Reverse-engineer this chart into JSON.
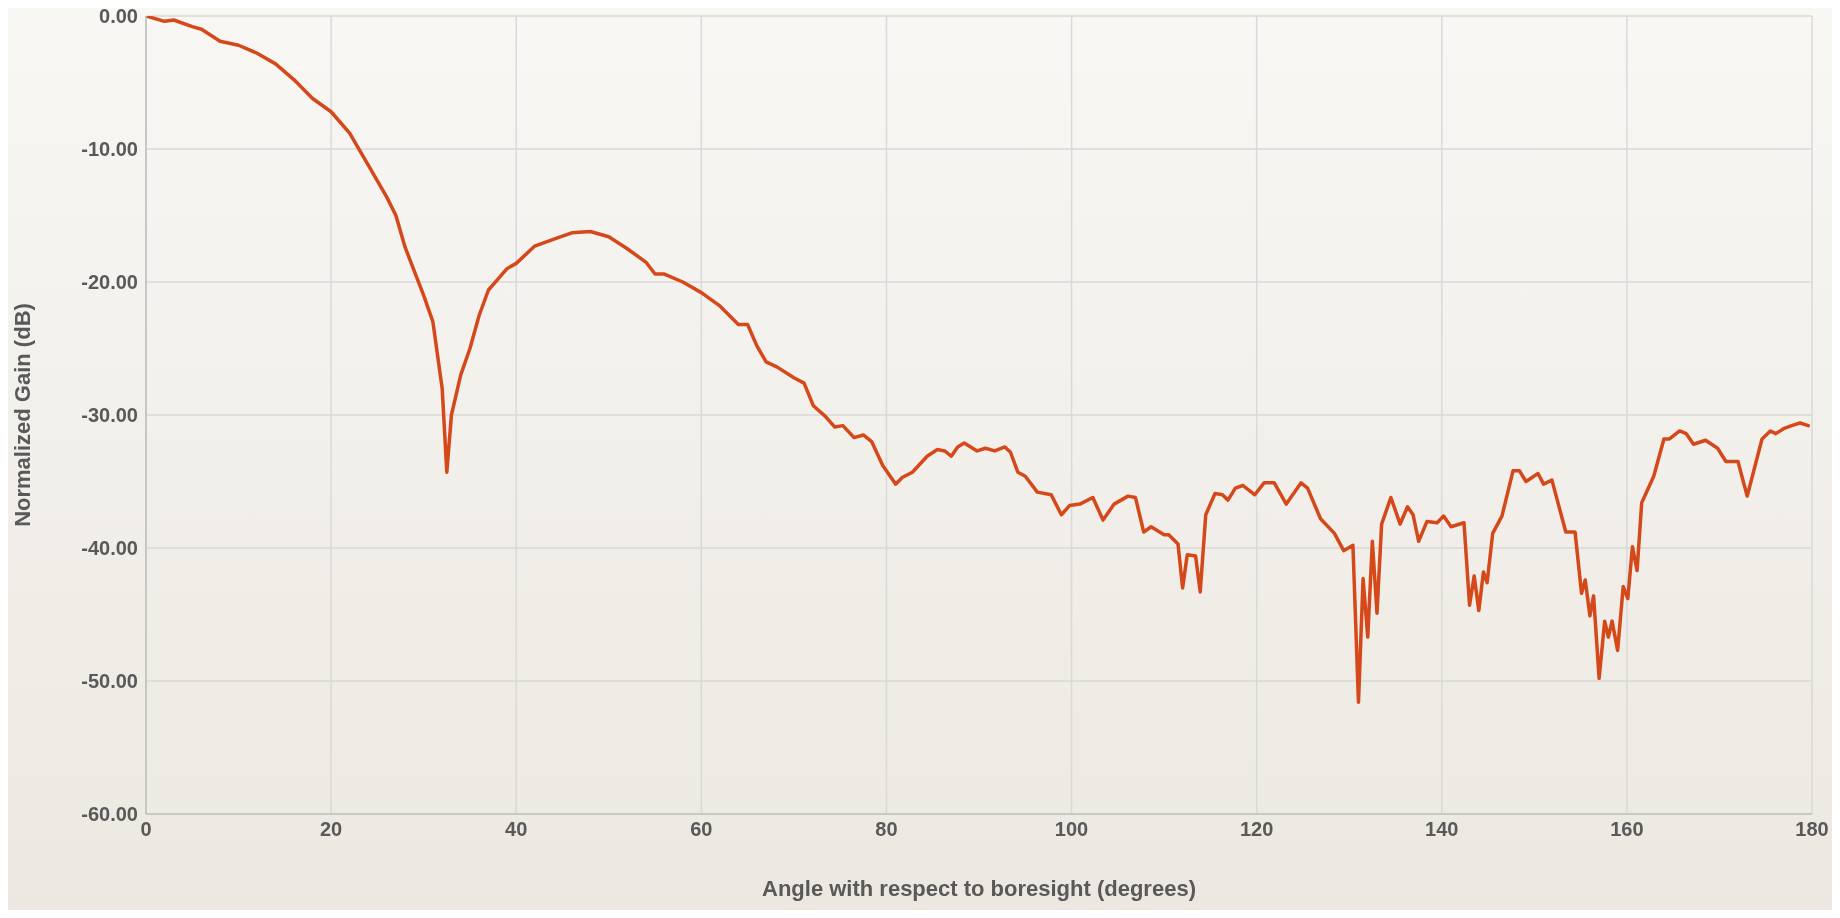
{
  "chart_data": {
    "type": "line",
    "xlabel": "Angle with respect to boresight (degrees)",
    "ylabel": "Normalized Gain (dB)",
    "xlim": [
      0,
      180
    ],
    "xticks": [
      0,
      20,
      40,
      60,
      80,
      100,
      120,
      140,
      160,
      180
    ],
    "ylim": [
      -60,
      0
    ],
    "yticks": [
      {
        "value": -60,
        "label": "-60.00"
      },
      {
        "value": -50,
        "label": "-50.00"
      },
      {
        "value": -40,
        "label": "-40.00"
      },
      {
        "value": -30,
        "label": "-30.00"
      },
      {
        "value": -20,
        "label": "-20.00"
      },
      {
        "value": -10,
        "label": "-10.00"
      },
      {
        "value": 0,
        "label": "0.00"
      }
    ],
    "grid": true,
    "marker": "none",
    "line_style": "solid",
    "series": [
      {
        "color": "#d4481a",
        "x": [
          0,
          2,
          3,
          5,
          6,
          8,
          10,
          12,
          14,
          16,
          18,
          20,
          22,
          24,
          26,
          27,
          28,
          30,
          31,
          32,
          32.5,
          33,
          34,
          35,
          36,
          37,
          38,
          39,
          40,
          42,
          44,
          46,
          48,
          50,
          52,
          54,
          55,
          56,
          58,
          60,
          62,
          64,
          65,
          66,
          67,
          68.2,
          70,
          71.1,
          72.1,
          73.4,
          74.4,
          75.3,
          76.5,
          77.5,
          78.4,
          79.6,
          81,
          81.7,
          82.8,
          84.4,
          85.5,
          86.3,
          87,
          87.7,
          88.4,
          89.8,
          90.7,
          91.7,
          92.8,
          93.4,
          94.2,
          95,
          96.3,
          97.8,
          98.9,
          99.8,
          100.9,
          102.3,
          103.4,
          104.6,
          106.1,
          106.9,
          107.8,
          108.6,
          110,
          110.5,
          111.5,
          112,
          112.5,
          113.4,
          113.9,
          114.5,
          115.5,
          116.3,
          116.9,
          117.7,
          118.5,
          119.8,
          120.8,
          121.9,
          123.2,
          124.8,
          125.5,
          126.9,
          128.4,
          129.4,
          130.4,
          131,
          131.5,
          132,
          132.5,
          133,
          133.5,
          134.5,
          135.5,
          136.3,
          136.9,
          137.5,
          138.4,
          139.5,
          140.2,
          141,
          142.4,
          143,
          143.5,
          144,
          144.5,
          144.9,
          145.5,
          146.5,
          147.7,
          148.4,
          149.1,
          150.4,
          151,
          151.9,
          153.4,
          154.4,
          155.1,
          155.5,
          156,
          156.4,
          157,
          157.6,
          158,
          158.4,
          159,
          159.6,
          160.1,
          160.6,
          161.1,
          161.6,
          162.9,
          164,
          164.6,
          165.7,
          166.4,
          167.2,
          168.5,
          169.8,
          170.7,
          172,
          173,
          174.6,
          175.5,
          176.1,
          177,
          177.8,
          178.7,
          179.6
        ],
        "values": [
          0,
          -0.4,
          -0.3,
          -0.8,
          -1.0,
          -1.9,
          -2.2,
          -2.8,
          -3.6,
          -4.8,
          -6.2,
          -7.2,
          -8.8,
          -11.2,
          -13.6,
          -15,
          -17.4,
          -21,
          -23,
          -28,
          -34.3,
          -30,
          -27,
          -25,
          -22.5,
          -20.6,
          -19.8,
          -19,
          -18.6,
          -17.3,
          -16.8,
          -16.3,
          -16.2,
          -16.6,
          -17.5,
          -18.5,
          -19.4,
          -19.4,
          -20,
          -20.8,
          -21.8,
          -23.2,
          -23.2,
          -24.8,
          -26,
          -26.4,
          -27.2,
          -27.6,
          -29.3,
          -30.1,
          -30.9,
          -30.8,
          -31.7,
          -31.5,
          -32.0,
          -33.8,
          -35.2,
          -34.7,
          -34.3,
          -33.1,
          -32.6,
          -32.7,
          -33.1,
          -32.4,
          -32.1,
          -32.7,
          -32.5,
          -32.7,
          -32.4,
          -32.8,
          -34.3,
          -34.6,
          -35.8,
          -36.0,
          -37.5,
          -36.8,
          -36.7,
          -36.2,
          -37.9,
          -36.7,
          -36.1,
          -36.2,
          -38.8,
          -38.4,
          -39.0,
          -39.0,
          -39.7,
          -43.0,
          -40.5,
          -40.6,
          -43.3,
          -37.5,
          -35.9,
          -36.0,
          -36.4,
          -35.5,
          -35.3,
          -36.0,
          -35.1,
          -35.1,
          -36.7,
          -35.1,
          -35.5,
          -37.8,
          -38.9,
          -40.2,
          -39.8,
          -51.6,
          -42.3,
          -46.7,
          -39.5,
          -44.9,
          -38.2,
          -36.2,
          -38.2,
          -36.9,
          -37.5,
          -39.5,
          -38.0,
          -38.1,
          -37.6,
          -38.4,
          -38.1,
          -44.3,
          -42.1,
          -44.7,
          -41.8,
          -42.6,
          -38.9,
          -37.6,
          -34.2,
          -34.2,
          -35.0,
          -34.4,
          -35.2,
          -34.9,
          -38.8,
          -38.8,
          -43.4,
          -42.4,
          -45.1,
          -43.6,
          -49.8,
          -45.5,
          -46.7,
          -45.5,
          -47.7,
          -42.9,
          -43.8,
          -39.9,
          -41.7,
          -36.6,
          -34.6,
          -31.8,
          -31.8,
          -31.2,
          -31.4,
          -32.2,
          -31.9,
          -32.5,
          -33.5,
          -33.5,
          -36.1,
          -31.8,
          -31.2,
          -31.4,
          -31.0,
          -30.8,
          -30.6,
          -30.8
        ]
      }
    ]
  }
}
